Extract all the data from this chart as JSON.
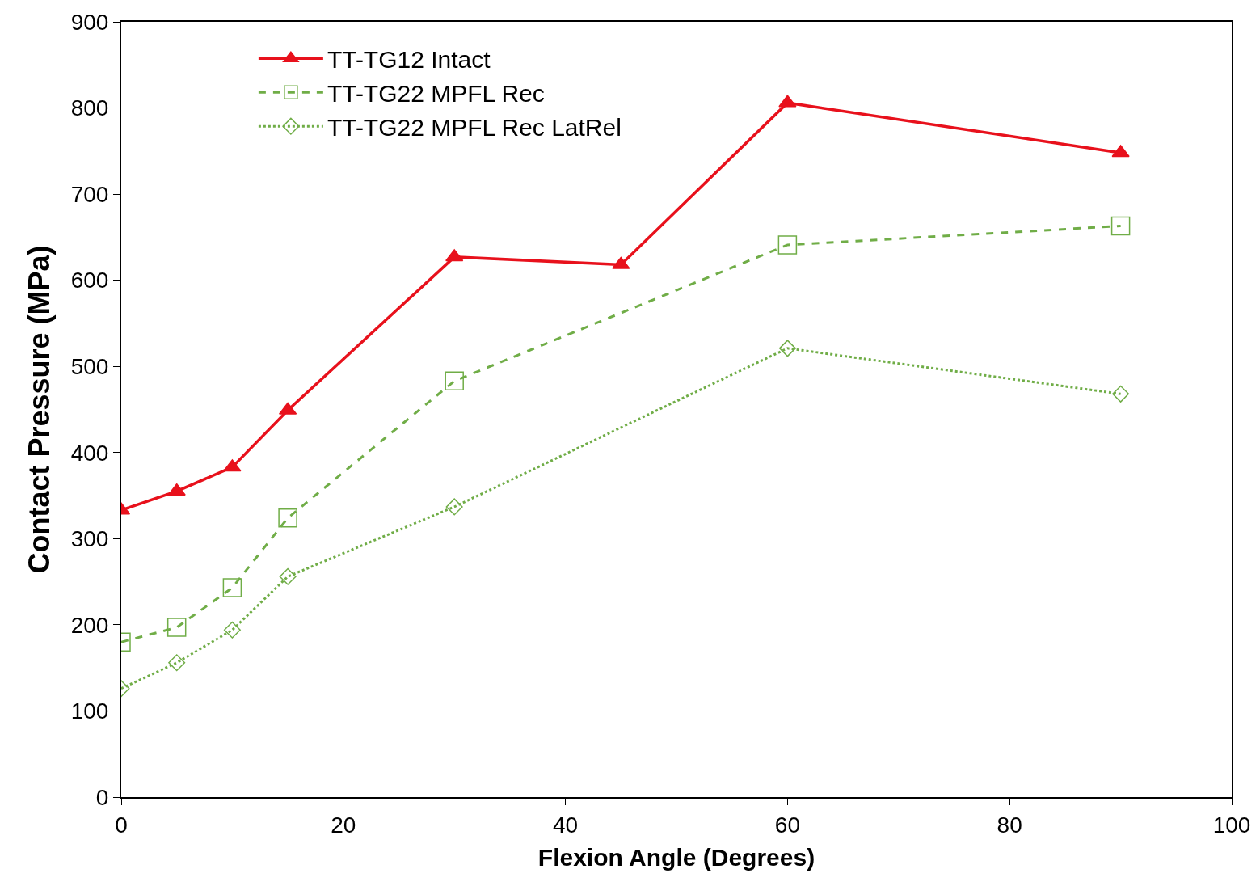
{
  "chart_data": {
    "type": "line",
    "xlabel": "Flexion Angle (Degrees)",
    "ylabel": "Contact Pressure (MPa)",
    "xlim": [
      0,
      100
    ],
    "xticks": [
      0,
      20,
      40,
      60,
      80,
      100
    ],
    "ylim": [
      0,
      900
    ],
    "yticks": [
      0,
      100,
      200,
      300,
      400,
      500,
      600,
      700,
      800,
      900
    ],
    "legend": "top left",
    "series": [
      {
        "name": "TT-TG12 Intact",
        "color": "#e8111c",
        "marker": "triangle",
        "line_style": "solid",
        "x": [
          0,
          5,
          10,
          15,
          30,
          45,
          60,
          90
        ],
        "values": [
          333,
          355,
          383,
          449,
          627,
          618,
          806,
          748
        ]
      },
      {
        "name": "TT-TG22 MPFL Rec",
        "color": "#70ad47",
        "marker": "square",
        "line_style": "dashed",
        "x": [
          0,
          5,
          10,
          15,
          30,
          60,
          90
        ],
        "values": [
          180,
          197,
          243,
          324,
          483,
          641,
          663
        ]
      },
      {
        "name": "TT-TG22 MPFL Rec LatRel",
        "color": "#70ad47",
        "marker": "diamond",
        "line_style": "dotted",
        "x": [
          0,
          5,
          10,
          15,
          30,
          60,
          90
        ],
        "values": [
          126,
          156,
          194,
          256,
          337,
          521,
          468
        ]
      }
    ]
  }
}
